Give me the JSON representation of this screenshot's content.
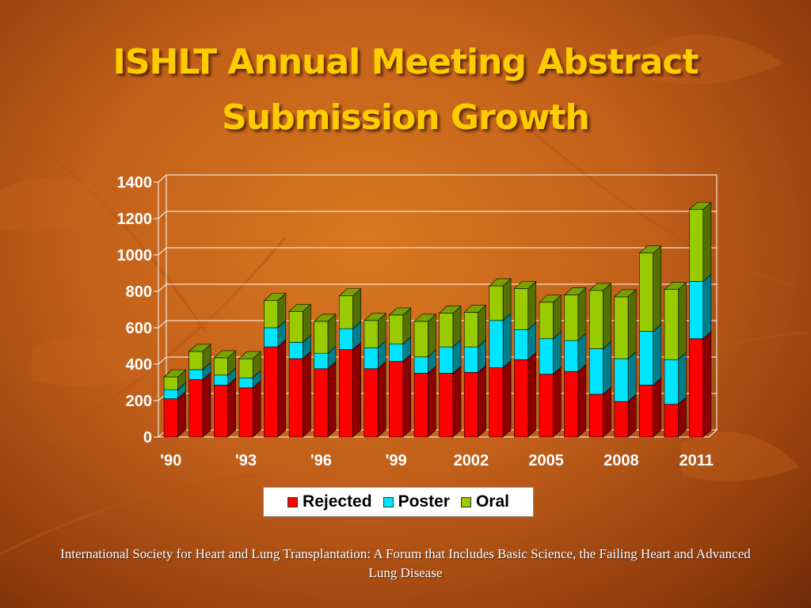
{
  "slide": {
    "title_line1": "ISHLT Annual Meeting Abstract",
    "title_line2": "Submission Growth",
    "footer": "International Society for Heart and Lung Transplantation: A Forum that Includes Basic Science, the Failing Heart and Advanced Lung Disease"
  },
  "colors": {
    "rejected": "#ff0000",
    "poster": "#00e5ff",
    "oral": "#99cc00",
    "title": "#ffcc00"
  },
  "chart_data": {
    "type": "bar",
    "stacked": true,
    "three_d": true,
    "categories": [
      "'90",
      "'91",
      "'92",
      "'93",
      "'94",
      "'95",
      "'96",
      "'97",
      "'98",
      "'99",
      "2000",
      "2001",
      "2002",
      "2003",
      "2004",
      "2005",
      "2006",
      "2007",
      "2008",
      "2009",
      "2010",
      "2011"
    ],
    "x_tick_labels": [
      "'90",
      "'93",
      "'96",
      "'99",
      "2002",
      "2005",
      "2008",
      "2011"
    ],
    "series": [
      {
        "name": "Rejected",
        "values": [
          210,
          315,
          285,
          270,
          495,
          430,
          375,
          480,
          375,
          415,
          350,
          350,
          355,
          380,
          425,
          345,
          360,
          235,
          195,
          285,
          180,
          540
        ]
      },
      {
        "name": "Poster",
        "values": [
          50,
          55,
          55,
          55,
          105,
          90,
          85,
          115,
          115,
          95,
          90,
          145,
          140,
          260,
          165,
          195,
          170,
          250,
          235,
          295,
          245,
          315
        ]
      },
      {
        "name": "Oral",
        "values": [
          70,
          100,
          95,
          105,
          150,
          170,
          175,
          180,
          150,
          160,
          195,
          185,
          190,
          190,
          225,
          200,
          250,
          320,
          340,
          430,
          385,
          395
        ]
      }
    ],
    "ylim": [
      0,
      1400
    ],
    "yticks": [
      0,
      200,
      400,
      600,
      800,
      1000,
      1200,
      1400
    ],
    "grid": true,
    "legend_position": "bottom"
  }
}
